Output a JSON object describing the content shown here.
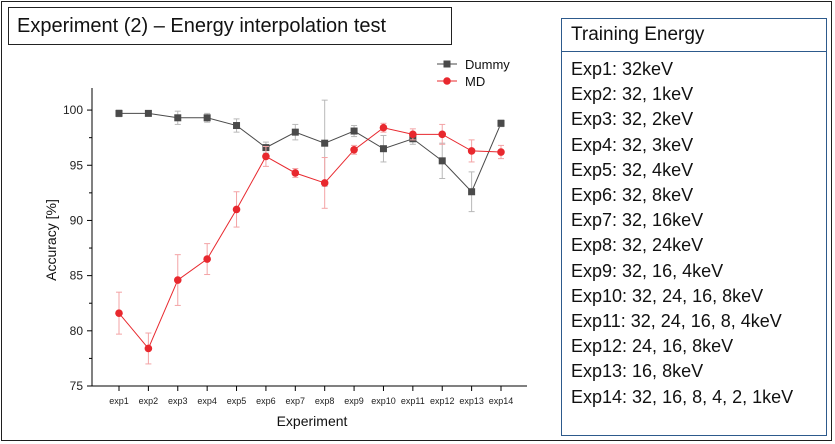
{
  "slide": {
    "title": "Experiment (2) – Energy interpolation test"
  },
  "training_panel": {
    "header": "Training Energy",
    "items": [
      "Exp1: 32keV",
      "Exp2: 32, 1keV",
      "Exp3: 32, 2keV",
      "Exp4: 32, 3keV",
      "Exp5: 32, 4keV",
      "Exp6: 32, 8keV",
      "Exp7: 32, 16keV",
      "Exp8: 32, 24keV",
      "Exp9: 32, 16, 4keV",
      "Exp10: 32, 24, 16, 8keV",
      "Exp11: 32, 24, 16, 8, 4keV",
      "Exp12: 24, 16, 8keV",
      "Exp13: 16, 8keV",
      "Exp14: 32, 16, 8, 4, 2, 1keV"
    ]
  },
  "chart_data": {
    "type": "line",
    "title": "",
    "xlabel": "Experiment",
    "ylabel": "Accuracy [%]",
    "ylim": [
      75,
      102
    ],
    "yticks": [
      75,
      80,
      85,
      90,
      95,
      100
    ],
    "categories": [
      "exp1",
      "exp2",
      "exp3",
      "exp4",
      "exp5",
      "exp6",
      "exp7",
      "exp8",
      "exp9",
      "exp10",
      "exp11",
      "exp12",
      "exp13",
      "exp14"
    ],
    "legend_position": "top-right",
    "series": [
      {
        "name": "Dummy",
        "color": "#4a4a4a",
        "marker": "square",
        "values": [
          99.7,
          99.7,
          99.3,
          99.3,
          98.6,
          96.6,
          98.0,
          97.0,
          98.1,
          96.5,
          97.4,
          95.4,
          92.6,
          98.8
        ],
        "errors": [
          0.3,
          0.2,
          0.6,
          0.4,
          0.6,
          0.5,
          0.7,
          3.9,
          0.5,
          1.2,
          0.5,
          1.6,
          1.8,
          0.3
        ]
      },
      {
        "name": "MD",
        "color": "#e8282e",
        "marker": "circle",
        "values": [
          81.6,
          78.4,
          84.6,
          86.5,
          91.0,
          95.8,
          94.3,
          93.4,
          96.4,
          98.4,
          97.8,
          97.8,
          96.3,
          96.2
        ],
        "errors": [
          1.9,
          1.4,
          2.3,
          1.4,
          1.6,
          0.9,
          0.4,
          2.3,
          0.4,
          0.4,
          0.5,
          0.9,
          1.0,
          0.6
        ]
      }
    ]
  }
}
